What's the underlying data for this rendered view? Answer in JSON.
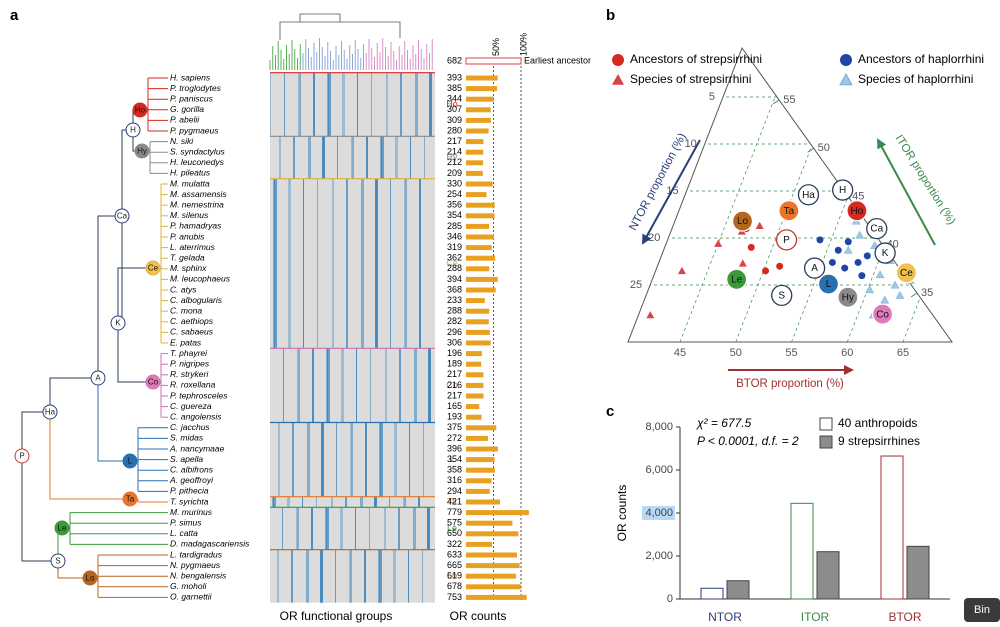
{
  "panel_labels": [
    "a",
    "b",
    "c"
  ],
  "panel_a": {
    "earliest": {
      "label": "Earliest ancestor",
      "count": 682
    },
    "xlim": [
      0,
      682
    ],
    "xticks": [
      {
        "value": 341,
        "label": "50%"
      },
      {
        "value": 682,
        "label": "100%"
      }
    ],
    "heatmap_label": "OR functional groups",
    "counts_label": "OR counts",
    "nodes": [
      {
        "name": "P",
        "color": "#ffffff",
        "stroke": "#c0392b"
      },
      {
        "name": "Ha",
        "color": "#ffffff",
        "stroke": "#2b3f7a"
      },
      {
        "name": "S",
        "color": "#ffffff",
        "stroke": "#2b3f7a"
      },
      {
        "name": "A",
        "color": "#ffffff",
        "stroke": "#2b3f7a"
      },
      {
        "name": "Ca",
        "color": "#ffffff",
        "stroke": "#2b3f7a"
      },
      {
        "name": "L",
        "color": "#2a6fb0",
        "stroke": "#2a6fb0"
      },
      {
        "name": "Ta",
        "color": "#e8752a",
        "stroke": "#e8752a"
      },
      {
        "name": "Le",
        "color": "#3a9a3a",
        "stroke": "#3a9a3a"
      },
      {
        "name": "Lo",
        "color": "#b5651d",
        "stroke": "#b5651d"
      },
      {
        "name": "H",
        "color": "#ffffff",
        "stroke": "#2b3f7a"
      },
      {
        "name": "Ho",
        "color": "#d42a20",
        "stroke": "#d42a20"
      },
      {
        "name": "Hy",
        "color": "#8a8a8a",
        "stroke": "#8a8a8a"
      },
      {
        "name": "Ce",
        "color": "#f0c050",
        "stroke": "#e0b040"
      },
      {
        "name": "K",
        "color": "#ffffff",
        "stroke": "#2b3f7a"
      },
      {
        "name": "Co",
        "color": "#e07ab8",
        "stroke": "#d070b0"
      }
    ],
    "bar_color": "#e8a020",
    "groups": [
      {
        "name": "Ho",
        "color": "#d42a20",
        "species": [
          "H. sapiens",
          "P. troglodytes",
          "P. paniscus",
          "G. gorilla",
          "P. abelii",
          "P. pygmaeus"
        ],
        "counts": [
          393,
          385,
          344,
          307,
          309,
          280
        ]
      },
      {
        "name": "Hy",
        "color": "#8a8a8a",
        "species": [
          "N. siki",
          "S. syndactylus",
          "H. leuconedys",
          "H. pileatus"
        ],
        "counts": [
          217,
          214,
          212,
          209
        ]
      },
      {
        "name": "Ce",
        "color": "#e0b040",
        "species": [
          "M. mulatta",
          "M. assamensis",
          "M. nemestrina",
          "M. silenus",
          "P. hamadryas",
          "P. anubis",
          "L. aterrimus",
          "T. gelada",
          "M. sphinx",
          "M. leucophaeus",
          "C. atys",
          "C. albogularis",
          "C. mona",
          "C. aethiops",
          "C. sabaeus",
          "E. patas"
        ],
        "counts": [
          330,
          254,
          356,
          354,
          285,
          346,
          319,
          362,
          288,
          394,
          368,
          233,
          288,
          282,
          296,
          306
        ]
      },
      {
        "name": "Co",
        "color": "#d070b0",
        "species": [
          "T. phayrei",
          "P. nigripes",
          "R. strykeri",
          "R. roxellana",
          "P. tephrosceles",
          "C. guereza",
          "C. angolensis"
        ],
        "counts": [
          196,
          189,
          217,
          216,
          217,
          165,
          193
        ]
      },
      {
        "name": "L",
        "color": "#2a6fb0",
        "species": [
          "C. jacchus",
          "S. midas",
          "A. nancymaae",
          "S. apella",
          "C. albifrons",
          "A. geoffroyi",
          "P. pithecia"
        ],
        "counts": [
          375,
          272,
          396,
          354,
          358,
          316,
          294
        ]
      },
      {
        "name": "Ta",
        "color": "#e8752a",
        "species": [
          "T. syrichta"
        ],
        "counts": [
          421
        ]
      },
      {
        "name": "Le",
        "color": "#3a9a3a",
        "species": [
          "M. murinus",
          "P. simus",
          "L. catta",
          "D. madagascariensis"
        ],
        "counts": [
          779,
          575,
          650,
          322
        ]
      },
      {
        "name": "Lo",
        "color": "#b5651d",
        "species": [
          "L. tardigradus",
          "N. pygmaeus",
          "N. bengalensis",
          "G. moholi",
          "O. garnettii"
        ],
        "counts": [
          633,
          665,
          619,
          678,
          753
        ]
      }
    ]
  },
  "panel_b": {
    "type": "ternary",
    "btor_label": "BTOR proportion (%)",
    "ntor_label": "NTOR proportion (%)",
    "itor_label": "ITOR proportion (%)",
    "btor_ticks": [
      45,
      50,
      55,
      60,
      65
    ],
    "ntor_ticks": [
      5,
      10,
      15,
      20,
      25
    ],
    "itor_ticks": [
      35,
      40,
      45,
      50,
      55
    ],
    "series": [
      {
        "name": "Ancestors of strepsirrhini",
        "marker": "circle",
        "color": "#d42a20",
        "btor": [
          47.0,
          48.1,
          51.3,
          50.2
        ],
        "ntor": [
          19.0,
          21.0,
          23.0,
          23.5
        ]
      },
      {
        "name": "Species of strepsirrhini",
        "marker": "triangle",
        "color": "#d9434a",
        "btor": [
          46.7,
          45.0,
          48.1,
          42.7,
          41.4,
          47.9
        ],
        "ntor": [
          19.3,
          20.6,
          18.7,
          23.5,
          28.2,
          22.7
        ]
      },
      {
        "name": "Ancestors of haplorrhini",
        "marker": "circle",
        "color": "#1f45a8",
        "btor": [
          54.0,
          56.0,
          56.6,
          58.2,
          57.2,
          58.8,
          55.9,
          59.0
        ],
        "ntor": [
          20.2,
          21.3,
          20.4,
          22.6,
          23.2,
          21.9,
          22.6,
          24.0
        ]
      },
      {
        "name": "Species of haplorrhini",
        "marker": "triangle",
        "color": "#9cc8e6",
        "btor": [
          57.4,
          59.1,
          61.0,
          60.6,
          62.3,
          60.2,
          61.9,
          63.1,
          56.6,
          63.5,
          61.4,
          56.9
        ],
        "ntor": [
          19.7,
          20.8,
          22.4,
          23.9,
          25.0,
          25.5,
          26.6,
          26.1,
          18.2,
          24.5,
          28.2,
          21.3
        ]
      }
    ],
    "ancestors": [
      {
        "name": "Ha",
        "color": "#ffffff",
        "btor": 51.4,
        "ntor": 15.4
      },
      {
        "name": "H",
        "color": "#ffffff",
        "btor": 54.3,
        "ntor": 14.9
      },
      {
        "name": "Ho",
        "color": "#d42a20",
        "btor": 56.3,
        "ntor": 17.1
      },
      {
        "name": "Ta",
        "color": "#e8752a",
        "btor": 50.2,
        "ntor": 17.1
      },
      {
        "name": "Lo",
        "color": "#b5651d",
        "btor": 46.4,
        "ntor": 18.2
      },
      {
        "name": "Ca",
        "color": "#ffffff",
        "btor": 58.7,
        "ntor": 19.0
      },
      {
        "name": "P",
        "color": "#ffffff",
        "btor": 51.0,
        "ntor": 20.2
      },
      {
        "name": "K",
        "color": "#ffffff",
        "btor": 60.3,
        "ntor": 21.6
      },
      {
        "name": "A",
        "color": "#ffffff",
        "btor": 54.5,
        "ntor": 23.2
      },
      {
        "name": "Le",
        "color": "#3a9a3a",
        "btor": 47.9,
        "ntor": 24.4
      },
      {
        "name": "Ce",
        "color": "#f0c050",
        "btor": 62.9,
        "ntor": 23.7
      },
      {
        "name": "L",
        "color": "#2a6fb0",
        "btor": 56.3,
        "ntor": 24.9
      },
      {
        "name": "S",
        "color": "#ffffff",
        "btor": 52.5,
        "ntor": 26.1
      },
      {
        "name": "Hy",
        "color": "#8a8a8a",
        "btor": 58.5,
        "ntor": 26.3
      },
      {
        "name": "Co",
        "color": "#e07ab8",
        "btor": 62.2,
        "ntor": 28.1
      }
    ]
  },
  "panel_c": {
    "type": "bar",
    "categories": [
      "NTOR",
      "ITOR",
      "BTOR"
    ],
    "category_colors": [
      "#2b3f7a",
      "#3a8a4a",
      "#a03030"
    ],
    "series": [
      {
        "name": "40 anthropoids",
        "color": "#ffffff",
        "values": [
          500,
          4450,
          6650
        ]
      },
      {
        "name": "9 strepsirrhines",
        "color": "#8c8c8c",
        "values": [
          850,
          2200,
          2450
        ]
      }
    ],
    "ylabel": "OR counts",
    "ylim": [
      0,
      8000
    ],
    "yticks": [
      0,
      {
        "value": 2000,
        "label": "2,000"
      },
      {
        "value": 4000,
        "label": "4,000"
      },
      {
        "value": 6000,
        "label": "6,000"
      },
      {
        "value": 8000,
        "label": "8,000"
      }
    ],
    "annotations": [
      "χ² = 677.5",
      "P < 0.0001, d.f. = 2"
    ]
  },
  "tooltip": "Bin"
}
